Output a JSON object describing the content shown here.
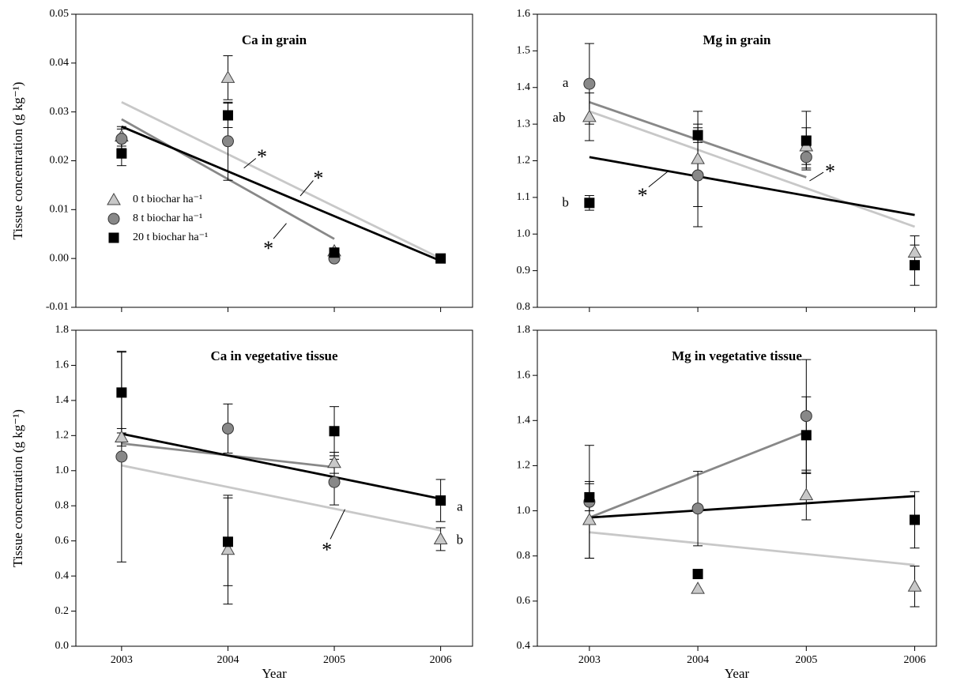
{
  "chart_data": [
    {
      "type": "scatter",
      "title": "Ca in grain",
      "ylabel": "Tissue concentration (g kg⁻¹)",
      "xlim": [
        2002.57,
        2006.3
      ],
      "xticks": [
        2003,
        2004,
        2005,
        2006
      ],
      "show_xtick_labels": false,
      "ylim": [
        -0.01,
        0.05
      ],
      "yticks": [
        -0.01,
        {
          "value": 0,
          "label": "0.00"
        },
        0.01,
        0.02,
        0.03,
        0.04,
        0.05
      ],
      "legend": "lower left",
      "series": [
        {
          "name": "0 t biochar ha⁻¹",
          "color": "#c8c8c8",
          "marker": "triangle",
          "values": [
            0.025,
            0.037,
            0.0015,
            null
          ],
          "errors": [
            0.002,
            0.0045,
            0.0005,
            null
          ],
          "fit_x": [
            2003,
            2006
          ],
          "fit": [
            0.032,
            0.0
          ]
        },
        {
          "name": "8 t biochar ha⁻¹",
          "color": "#888888",
          "marker": "circle",
          "values": [
            0.0245,
            0.024,
            0.0,
            null
          ],
          "errors": [
            0.002,
            0.008,
            null,
            null
          ],
          "fit_x": [
            2003,
            2005
          ],
          "fit": [
            0.0285,
            0.004
          ]
        },
        {
          "name": "20 t biochar ha⁻¹",
          "color": "#000000",
          "marker": "square",
          "values": [
            0.0215,
            0.0293,
            0.0012,
            0.0
          ],
          "errors": [
            0.0025,
            0.0025,
            0.0008,
            null
          ],
          "fit_x": [
            2003,
            2006
          ],
          "fit": [
            0.027,
            -0.0005
          ]
        }
      ],
      "annotations": [
        {
          "text": "*",
          "x": 2004.32,
          "y": 0.0215,
          "to": [
            2004.15,
            0.0185
          ]
        },
        {
          "text": "*",
          "x": 2004.85,
          "y": 0.0172,
          "to": [
            2004.68,
            0.0128
          ]
        },
        {
          "text": "*",
          "x": 2004.38,
          "y": 0.0028,
          "to": [
            2004.55,
            0.0072
          ]
        }
      ]
    },
    {
      "type": "scatter",
      "title": "Mg in grain",
      "xlim": [
        2002.52,
        2006.2
      ],
      "xticks": [
        2003,
        2004,
        2005,
        2006
      ],
      "show_xtick_labels": false,
      "ylim": [
        0.8,
        1.6
      ],
      "yticks": [
        0.8,
        0.9,
        {
          "value": 1,
          "label": "1.0"
        },
        1.1,
        1.2,
        1.3,
        1.4,
        1.5,
        1.6
      ],
      "series": [
        {
          "name": "0 t biochar ha⁻¹",
          "color": "#c8c8c8",
          "marker": "triangle",
          "values": [
            1.32,
            1.205,
            1.24,
            0.95
          ],
          "errors": [
            0.065,
            0.13,
            0.05,
            0.045
          ],
          "fit_x": [
            2003,
            2006
          ],
          "fit": [
            1.335,
            1.02
          ]
        },
        {
          "name": "8 t biochar ha⁻¹",
          "color": "#888888",
          "marker": "circle",
          "values": [
            1.41,
            1.16,
            1.21,
            null
          ],
          "errors": [
            0.11,
            0.14,
            0.03,
            null
          ],
          "fit_x": [
            2003,
            2005
          ],
          "fit": [
            1.36,
            1.155
          ]
        },
        {
          "name": "20 t biochar ha⁻¹",
          "color": "#000000",
          "marker": "square",
          "values": [
            1.085,
            1.27,
            1.255,
            0.915
          ],
          "errors": [
            0.02,
            0.02,
            0.08,
            0.055
          ],
          "fit_x": [
            2003,
            2006
          ],
          "fit": [
            1.21,
            1.052
          ]
        }
      ],
      "annotations": [
        {
          "text": "a",
          "x": 2002.78,
          "y": 1.41
        },
        {
          "text": "ab",
          "x": 2002.72,
          "y": 1.315
        },
        {
          "text": "b",
          "x": 2002.78,
          "y": 1.083
        },
        {
          "text": "*",
          "x": 2003.49,
          "y": 1.115,
          "to": [
            2003.72,
            1.17
          ]
        },
        {
          "text": "*",
          "x": 2005.22,
          "y": 1.18,
          "to": [
            2005.03,
            1.145
          ]
        }
      ]
    },
    {
      "type": "scatter",
      "title": "Ca in vegetative tissue",
      "ylabel": "Tissue concentration (g kg⁻¹)",
      "xlabel": "Year",
      "xlim": [
        2002.57,
        2006.3
      ],
      "xticks": [
        2003,
        2004,
        2005,
        2006
      ],
      "show_xtick_labels": true,
      "ylim": [
        0,
        1.8
      ],
      "yticks": [
        {
          "value": 0,
          "label": "0.0"
        },
        0.2,
        0.4,
        0.6,
        0.8,
        {
          "value": 1,
          "label": "1.0"
        },
        1.2,
        1.4,
        1.6,
        1.8
      ],
      "series": [
        {
          "name": "0 t biochar ha⁻¹",
          "color": "#c8c8c8",
          "marker": "triangle",
          "values": [
            1.19,
            0.55,
            1.045,
            0.61
          ],
          "errors": [
            0.05,
            0.31,
            0.06,
            0.065
          ],
          "fit_x": [
            2003,
            2006
          ],
          "fit": [
            1.03,
            0.66
          ]
        },
        {
          "name": "8 t biochar ha⁻¹",
          "color": "#888888",
          "marker": "circle",
          "values": [
            1.08,
            1.24,
            0.935,
            null
          ],
          "errors": [
            0.6,
            0.14,
            0.13,
            null
          ],
          "fit_x": [
            2003,
            2005
          ],
          "fit": [
            1.155,
            1.02
          ]
        },
        {
          "name": "20 t biochar ha⁻¹",
          "color": "#000000",
          "marker": "square",
          "values": [
            1.445,
            0.595,
            1.225,
            0.83
          ],
          "errors": [
            0.23,
            0.25,
            0.14,
            0.12
          ],
          "fit_x": [
            2003,
            2006
          ],
          "fit": [
            1.21,
            0.84
          ]
        }
      ],
      "annotations": [
        {
          "text": "a",
          "x": 2006.18,
          "y": 0.79
        },
        {
          "text": "b",
          "x": 2006.18,
          "y": 0.6
        },
        {
          "text": "*",
          "x": 2004.93,
          "y": 0.57,
          "to": [
            2005.1,
            0.78
          ]
        }
      ]
    },
    {
      "type": "scatter",
      "title": "Mg in vegetative tissue",
      "xlabel": "Year",
      "xlim": [
        2002.52,
        2006.2
      ],
      "xticks": [
        2003,
        2004,
        2005,
        2006
      ],
      "show_xtick_labels": true,
      "ylim": [
        0.4,
        1.8
      ],
      "yticks": [
        0.4,
        0.6,
        0.8,
        {
          "value": 1,
          "label": "1.0"
        },
        1.2,
        1.4,
        1.6,
        1.8
      ],
      "series": [
        {
          "name": "0 t biochar ha⁻¹",
          "color": "#c8c8c8",
          "marker": "triangle",
          "values": [
            0.96,
            0.655,
            1.07,
            0.665
          ],
          "errors": [
            0.17,
            null,
            0.11,
            0.09
          ],
          "fit_x": [
            2003,
            2006
          ],
          "fit": [
            0.905,
            0.76
          ]
        },
        {
          "name": "8 t biochar ha⁻¹",
          "color": "#888888",
          "marker": "circle",
          "values": [
            1.04,
            1.01,
            1.42,
            null
          ],
          "errors": [
            0.25,
            0.165,
            0.25,
            null
          ],
          "fit_x": [
            2003,
            2005
          ],
          "fit": [
            0.97,
            1.35
          ]
        },
        {
          "name": "20 t biochar ha⁻¹",
          "color": "#000000",
          "marker": "square",
          "values": [
            1.06,
            0.72,
            1.335,
            0.96
          ],
          "errors": [
            0.06,
            null,
            0.17,
            0.125
          ],
          "fit_x": [
            2003,
            2006
          ],
          "fit": [
            0.97,
            1.065
          ]
        }
      ]
    }
  ]
}
